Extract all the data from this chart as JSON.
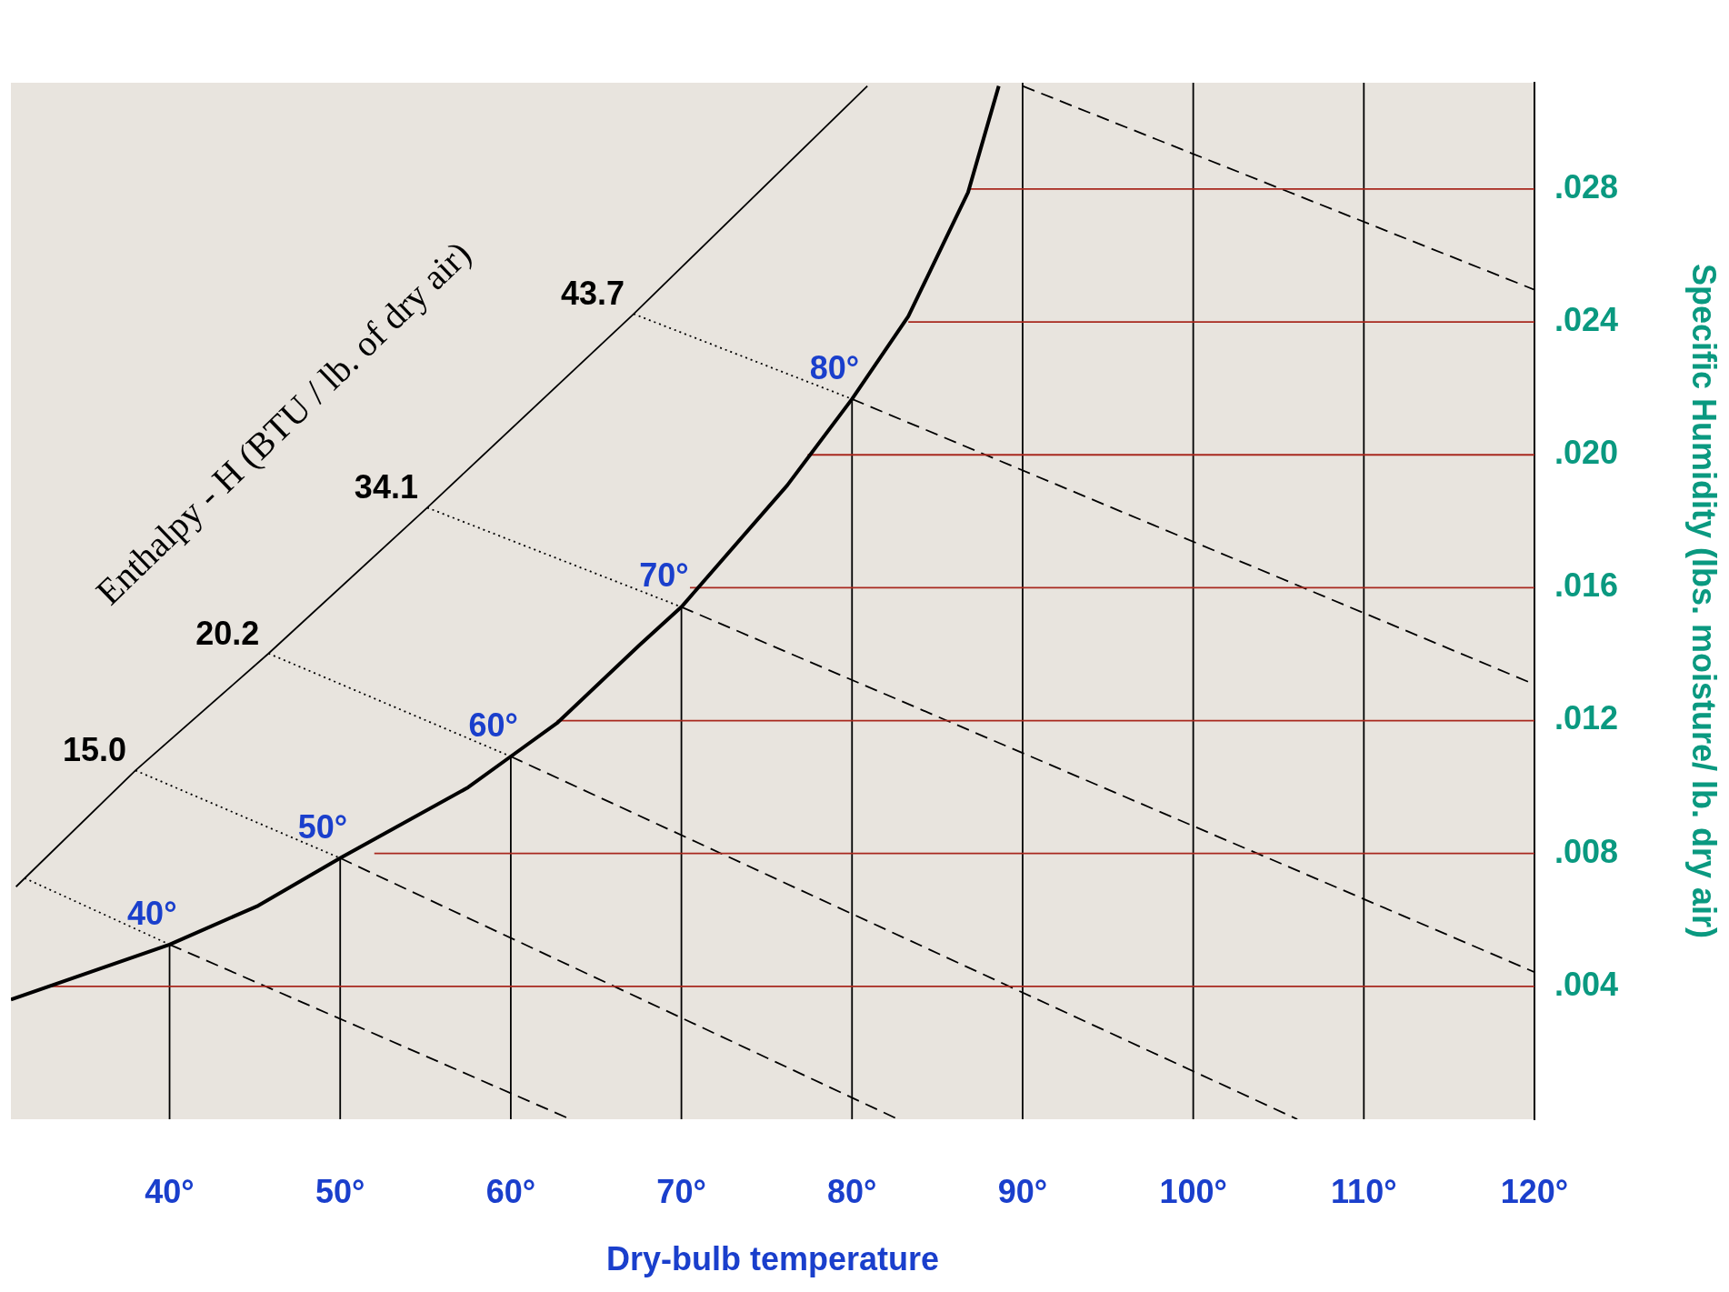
{
  "chart_data": {
    "type": "line",
    "xlabel": "Dry-bulb temperature",
    "ylabel": "Specific Humidity (lbs. moisture/ lb. dry air)",
    "xlim": [
      30.7,
      120
    ],
    "ylim": [
      0,
      0.0312
    ],
    "xticks": [
      {
        "value": 40,
        "label": "40°"
      },
      {
        "value": 50,
        "label": "50°"
      },
      {
        "value": 60,
        "label": "60°"
      },
      {
        "value": 70,
        "label": "70°"
      },
      {
        "value": 80,
        "label": "80°"
      },
      {
        "value": 90,
        "label": "90°"
      },
      {
        "value": 100,
        "label": "100°"
      },
      {
        "value": 110,
        "label": "110°"
      },
      {
        "value": 120,
        "label": "120°"
      }
    ],
    "yticks": [
      {
        "value": 0.004,
        "label": ".004"
      },
      {
        "value": 0.008,
        "label": ".008"
      },
      {
        "value": 0.012,
        "label": ".012"
      },
      {
        "value": 0.016,
        "label": ".016"
      },
      {
        "value": 0.02,
        "label": ".020"
      },
      {
        "value": 0.024,
        "label": ".024"
      },
      {
        "value": 0.028,
        "label": ".028"
      }
    ],
    "grid": false,
    "legend": false,
    "series": [
      {
        "type": "line",
        "color": "#000000",
        "line_style": "solid",
        "x": [
          30.7,
          40,
          45.2,
          50,
          57.5,
          60,
          62.7,
          67.5,
          70,
          76.2,
          80,
          83.3,
          86.8,
          88.6
        ],
        "values": [
          0.0036,
          0.00526,
          0.00643,
          0.00786,
          0.00999,
          0.01092,
          0.01192,
          0.01425,
          0.01542,
          0.01908,
          0.02168,
          0.02417,
          0.0279,
          0.0311
        ]
      },
      {
        "type": "line",
        "color": "#000000",
        "line_style": "solid",
        "x": [
          31,
          38,
          45.8,
          55.1,
          67.2,
          80.9
        ],
        "values": [
          0.007,
          0.0105,
          0.01402,
          0.01841,
          0.02424,
          0.0311
        ]
      },
      {
        "type": "line",
        "color": "#a8281e",
        "line_style": "solid",
        "x": [
          33,
          120
        ],
        "values": [
          0.004,
          0.004
        ]
      },
      {
        "type": "line",
        "color": "#a8281e",
        "line_style": "solid",
        "x": [
          52,
          120
        ],
        "values": [
          0.008,
          0.008
        ]
      },
      {
        "type": "line",
        "color": "#a8281e",
        "line_style": "solid",
        "x": [
          62.7,
          120
        ],
        "values": [
          0.012,
          0.012
        ]
      },
      {
        "type": "line",
        "color": "#a8281e",
        "line_style": "solid",
        "x": [
          70.5,
          120
        ],
        "values": [
          0.016,
          0.016
        ]
      },
      {
        "type": "line",
        "color": "#a8281e",
        "line_style": "solid",
        "x": [
          77.4,
          120
        ],
        "values": [
          0.02,
          0.02
        ]
      },
      {
        "type": "line",
        "color": "#a8281e",
        "line_style": "solid",
        "x": [
          83.3,
          120
        ],
        "values": [
          0.024,
          0.024
        ]
      },
      {
        "type": "line",
        "color": "#a8281e",
        "line_style": "solid",
        "x": [
          86.8,
          120
        ],
        "values": [
          0.028,
          0.028
        ]
      },
      {
        "type": "line",
        "color": "#000000",
        "line_style": "solid",
        "x": [
          40,
          40
        ],
        "values": [
          0.00526,
          0
        ]
      },
      {
        "type": "line",
        "color": "#000000",
        "line_style": "solid",
        "x": [
          50,
          50
        ],
        "values": [
          0.00786,
          0
        ]
      },
      {
        "type": "line",
        "color": "#000000",
        "line_style": "solid",
        "x": [
          60,
          60
        ],
        "values": [
          0.01092,
          0
        ]
      },
      {
        "type": "line",
        "color": "#000000",
        "line_style": "solid",
        "x": [
          70,
          70
        ],
        "values": [
          0.01542,
          0
        ]
      },
      {
        "type": "line",
        "color": "#000000",
        "line_style": "solid",
        "x": [
          80,
          80
        ],
        "values": [
          0.02168,
          0
        ]
      },
      {
        "type": "line",
        "color": "#000000",
        "line_style": "solid",
        "x": [
          90,
          90
        ],
        "values": [
          0,
          0.0312
        ]
      },
      {
        "type": "line",
        "color": "#000000",
        "line_style": "solid",
        "x": [
          100,
          100
        ],
        "values": [
          0,
          0.0312
        ]
      },
      {
        "type": "line",
        "color": "#000000",
        "line_style": "solid",
        "x": [
          110,
          110
        ],
        "values": [
          0,
          0.0312
        ]
      },
      {
        "type": "line",
        "color": "#000000",
        "line_style": [
          "dotted",
          "dashed"
        ],
        "x": [
          31.5,
          40,
          63.5
        ],
        "values": [
          0.00726,
          0.00526,
          0
        ]
      },
      {
        "type": "line",
        "color": "#000000",
        "line_style": [
          "dotted",
          "dashed"
        ],
        "x": [
          38,
          50,
          82.7
        ],
        "values": [
          0.0105,
          0.00786,
          0
        ]
      },
      {
        "type": "line",
        "color": "#000000",
        "line_style": [
          "dotted",
          "dashed"
        ],
        "x": [
          45.8,
          60,
          106.1
        ],
        "values": [
          0.01402,
          0.01092,
          0
        ]
      },
      {
        "type": "line",
        "color": "#000000",
        "line_style": [
          "dotted",
          "dashed"
        ],
        "x": [
          55.1,
          70,
          120
        ],
        "values": [
          0.01841,
          0.01542,
          0.00443
        ]
      },
      {
        "type": "line",
        "color": "#000000",
        "line_style": [
          "dotted",
          "dashed"
        ],
        "x": [
          67.2,
          80,
          120
        ],
        "values": [
          0.02424,
          0.02168,
          0.01309
        ]
      },
      {
        "type": "line",
        "color": "#000000",
        "line_style": "dashed",
        "x": [
          90,
          120
        ],
        "values": [
          0.0311,
          0.02497
        ]
      }
    ],
    "annotations": [
      "Enthalpy - H (BTU / lb. of dry air)",
      {
        "text": "40°",
        "x": 40,
        "y": 0.00526
      },
      {
        "text": "50°",
        "x": 50,
        "y": 0.00786
      },
      {
        "text": "60°",
        "x": 60,
        "y": 0.01092
      },
      {
        "text": "70°",
        "x": 70,
        "y": 0.01542
      },
      {
        "text": "80°",
        "x": 80,
        "y": 0.02168
      },
      {
        "text": "15.0",
        "x": 38,
        "y": 0.0105
      },
      {
        "text": "20.2",
        "x": 45.8,
        "y": 0.01402
      },
      {
        "text": "34.1",
        "x": 55.1,
        "y": 0.01841
      },
      {
        "text": "43.7",
        "x": 67.2,
        "y": 0.02424
      }
    ]
  }
}
